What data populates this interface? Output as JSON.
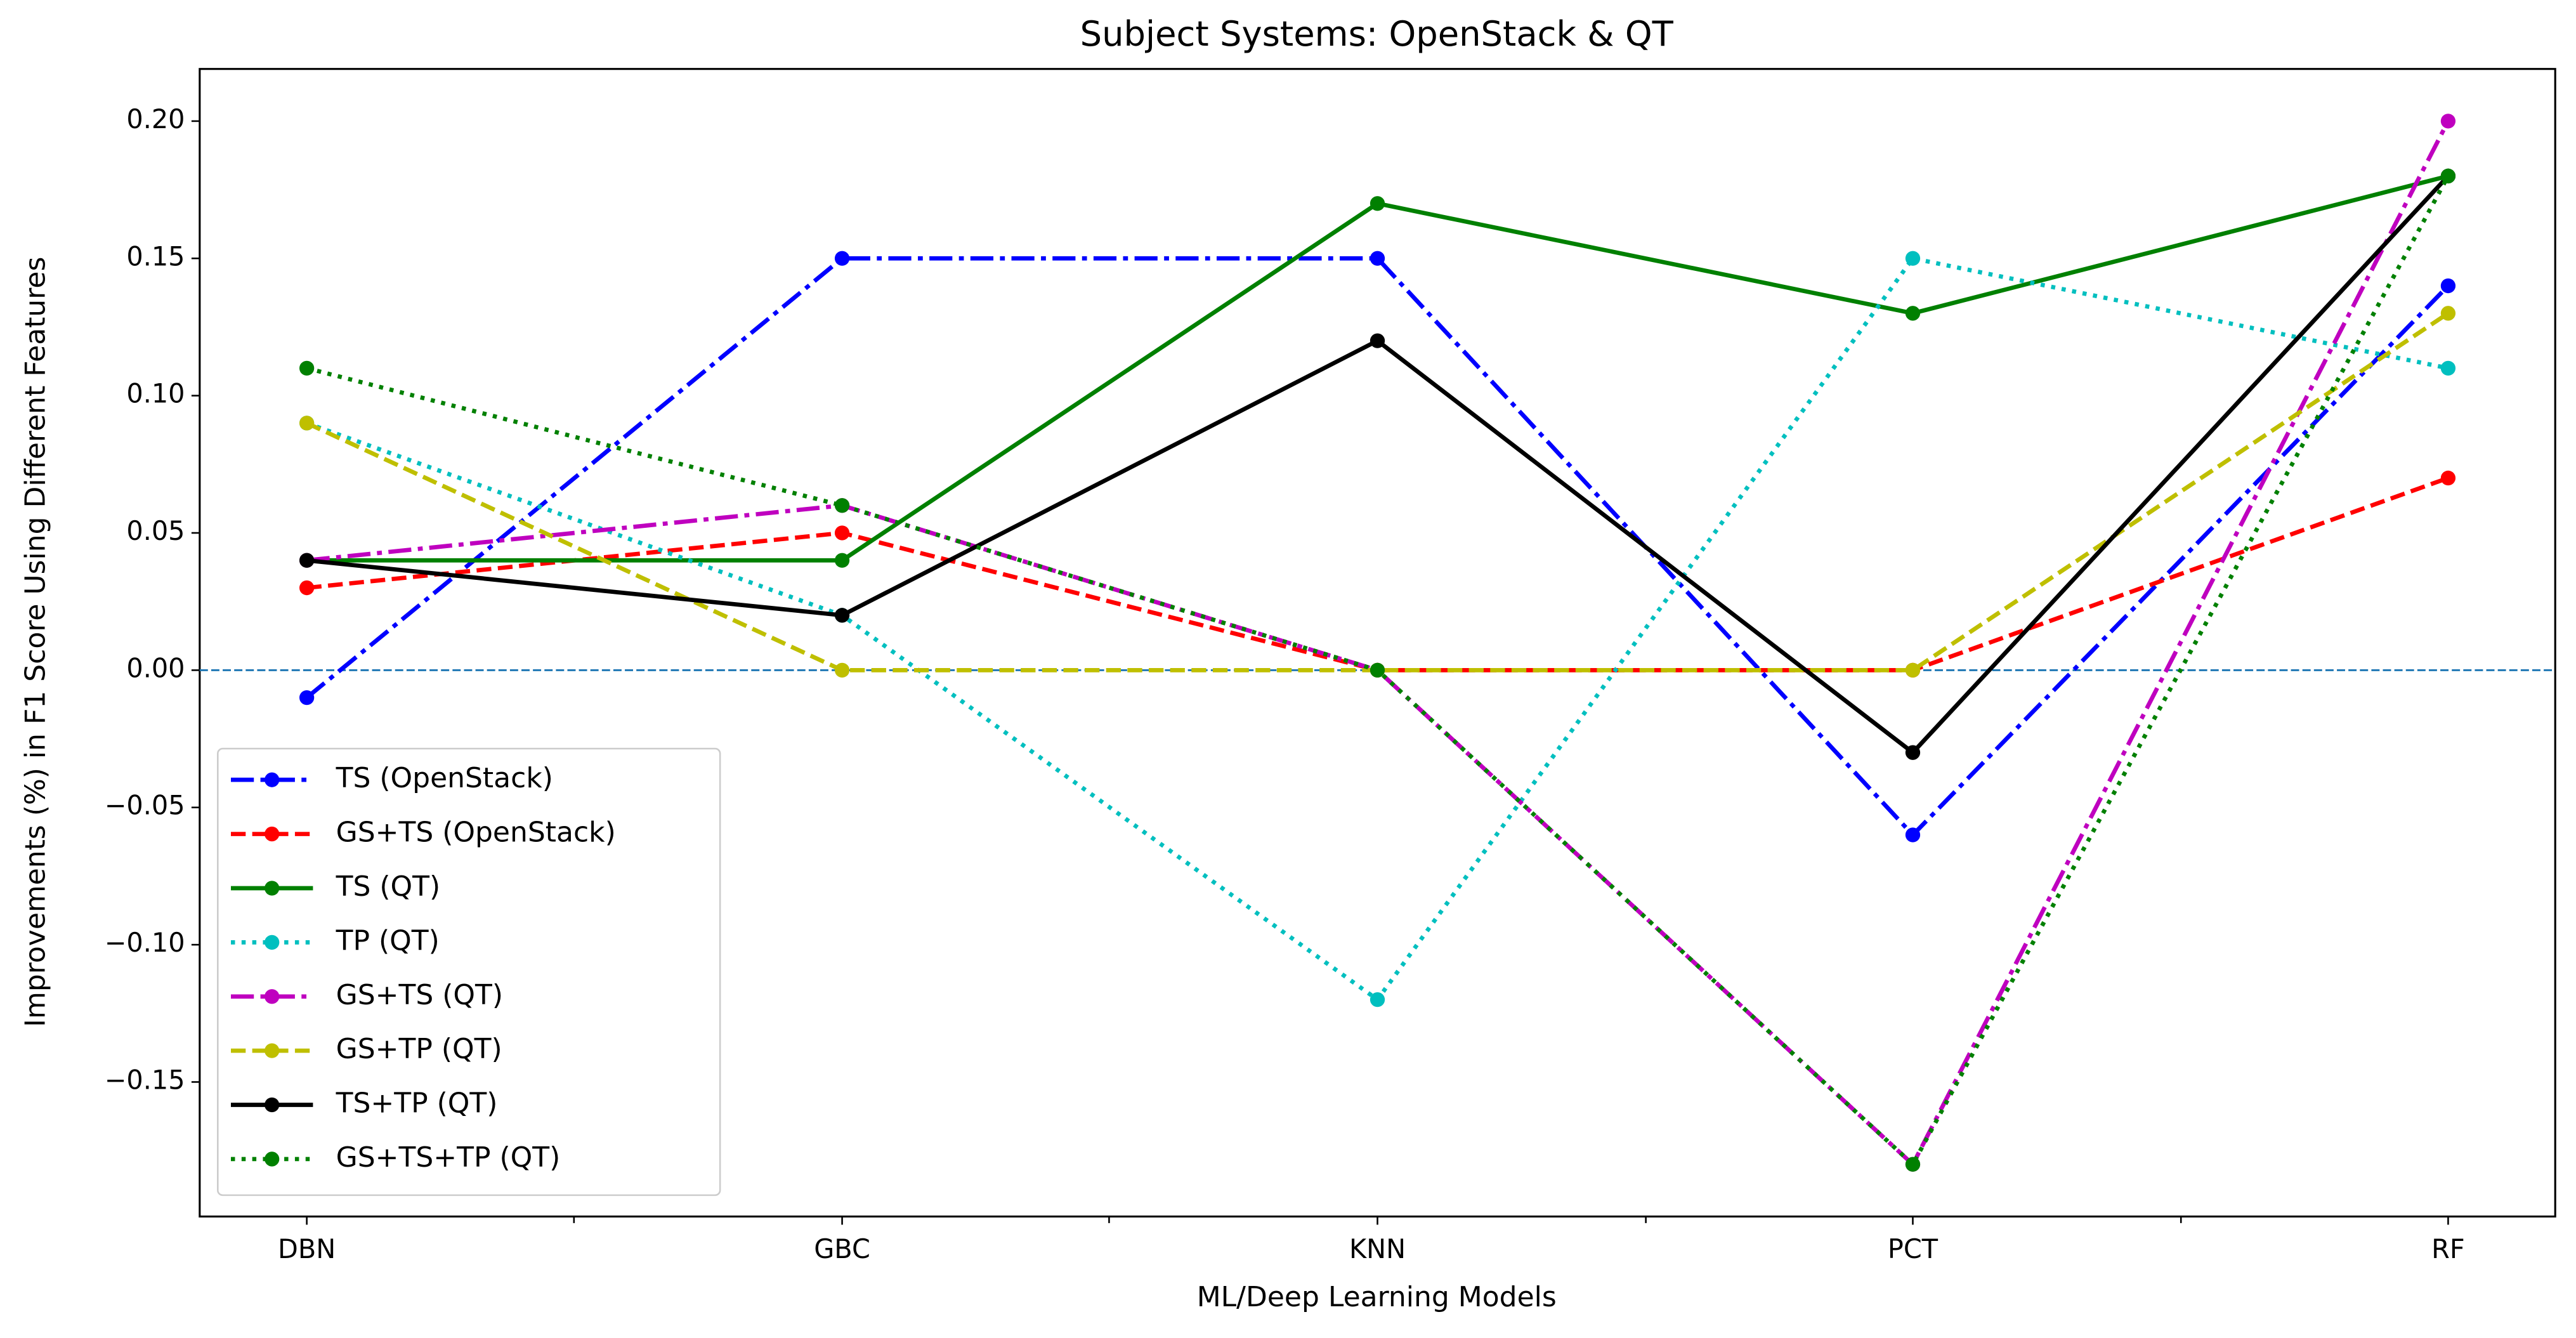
{
  "chart_data": {
    "type": "line",
    "title": "Subject Systems: OpenStack & QT",
    "x_label": "ML/Deep Learning Models",
    "y_label": "Improvements (%) in F1 Score Using Different Features",
    "categories": [
      "DBN",
      "GBC",
      "KNN",
      "PCT",
      "RF"
    ],
    "series": [
      {
        "name": "TS (OpenStack)",
        "color": "#0000ff",
        "linestyle": "dashdot",
        "values": [
          -0.01,
          0.15,
          0.15,
          -0.06,
          0.14
        ]
      },
      {
        "name": "GS+TS (OpenStack)",
        "color": "#ff0000",
        "linestyle": "dashed",
        "values": [
          0.03,
          0.05,
          0.0,
          0.0,
          0.07
        ]
      },
      {
        "name": "TS (QT)",
        "color": "#008000",
        "linestyle": "solid",
        "values": [
          0.04,
          0.04,
          0.17,
          0.13,
          0.18
        ]
      },
      {
        "name": "TP (QT)",
        "color": "#00bfbf",
        "linestyle": "dotted",
        "values": [
          0.09,
          0.02,
          -0.12,
          0.15,
          0.11
        ]
      },
      {
        "name": "GS+TS (QT)",
        "color": "#bf00bf",
        "linestyle": "dashdot",
        "values": [
          0.04,
          0.06,
          0.0,
          -0.18,
          0.2
        ]
      },
      {
        "name": "GS+TP (QT)",
        "color": "#bfbf00",
        "linestyle": "dashed",
        "values": [
          0.09,
          0.0,
          0.0,
          0.0,
          0.13
        ]
      },
      {
        "name": "TS+TP (QT)",
        "color": "#000000",
        "linestyle": "solid",
        "values": [
          0.04,
          0.02,
          0.12,
          -0.03,
          0.18
        ]
      },
      {
        "name": "GS+TS+TP (QT)",
        "color": "#008000",
        "linestyle": "dotted",
        "values": [
          0.11,
          0.06,
          0.0,
          -0.18,
          0.18
        ]
      }
    ],
    "ylim": [
      -0.199,
      0.219
    ],
    "yticks": [
      {
        "value": -0.15,
        "label": "−0.15"
      },
      {
        "value": -0.1,
        "label": "−0.10"
      },
      {
        "value": -0.05,
        "label": "−0.05"
      },
      {
        "value": 0,
        "label": "0.00"
      },
      {
        "value": 0.05,
        "label": "0.05"
      },
      {
        "value": 0.1,
        "label": "0.10"
      },
      {
        "value": 0.15,
        "label": "0.15"
      },
      {
        "value": 0.2,
        "label": "0.20"
      }
    ],
    "reference_line": {
      "value": 0,
      "color": "#1f77b4"
    },
    "legend": "lower left"
  }
}
